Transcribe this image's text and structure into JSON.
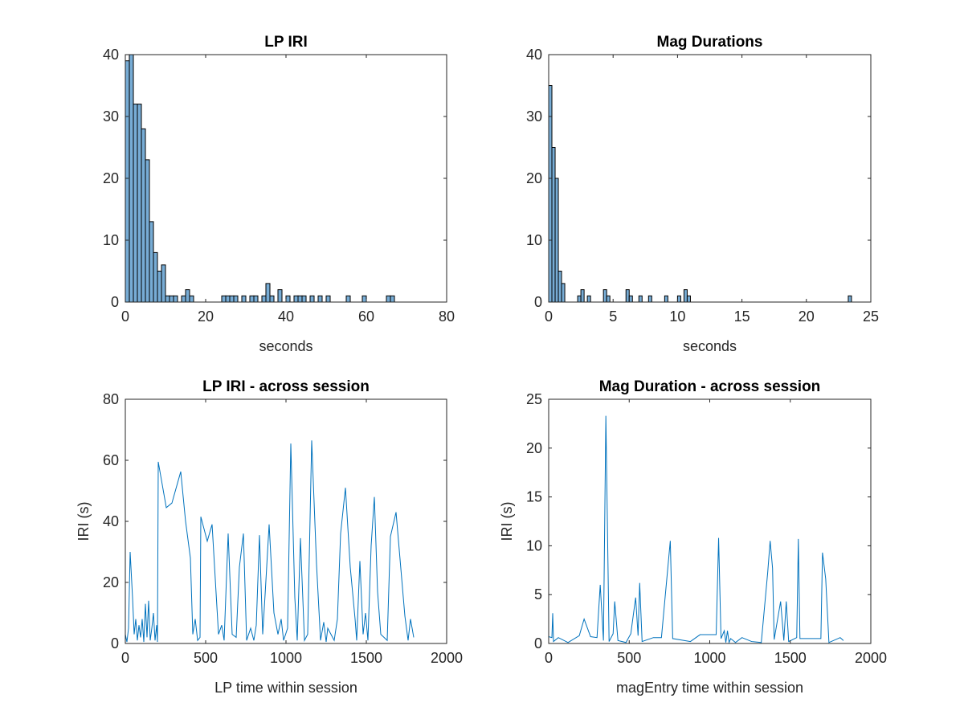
{
  "chart_data": [
    {
      "type": "histogram",
      "title": "LP IRI",
      "xlabel": "seconds",
      "color": "#77acd5",
      "edgecolor": "#000000",
      "bins": [
        0,
        1,
        2,
        3,
        4,
        5,
        6,
        7,
        8,
        9,
        10,
        11,
        12,
        13,
        14,
        15,
        16,
        17,
        18,
        19,
        20,
        21,
        22,
        23,
        24,
        25,
        26,
        27,
        28,
        29,
        30,
        31,
        32,
        33,
        34,
        35,
        36,
        37,
        38,
        39,
        40,
        41,
        42,
        43,
        44,
        45,
        46,
        47,
        48,
        49,
        50,
        51,
        52,
        53,
        54,
        55,
        56,
        57,
        58,
        59,
        60,
        61,
        62,
        63,
        64,
        65,
        66,
        67
      ],
      "values": [
        39,
        40,
        32,
        32,
        28,
        23,
        13,
        8,
        5,
        6,
        1,
        1,
        1,
        0,
        1,
        2,
        1,
        0,
        0,
        0,
        0,
        0,
        0,
        0,
        1,
        1,
        1,
        1,
        0,
        1,
        0,
        1,
        1,
        0,
        1,
        3,
        1,
        0,
        2,
        0,
        1,
        0,
        1,
        1,
        1,
        0,
        1,
        0,
        1,
        0,
        1,
        0,
        0,
        0,
        0,
        1,
        0,
        0,
        0,
        1,
        0,
        0,
        0,
        0,
        0,
        1,
        1
      ],
      "xlim": [
        0,
        80
      ],
      "ylim": [
        0,
        40
      ],
      "xticks": [
        0,
        20,
        40,
        60,
        80
      ],
      "yticks": [
        0,
        10,
        20,
        30,
        40
      ]
    },
    {
      "type": "histogram",
      "title": "Mag Durations",
      "xlabel": "seconds",
      "color": "#77acd5",
      "edgecolor": "#000000",
      "bins": [
        0,
        0.25,
        0.5,
        0.75,
        1,
        1.25,
        1.5,
        1.75,
        2,
        2.25,
        2.5,
        2.75,
        3,
        3.25,
        3.5,
        3.75,
        4,
        4.25,
        4.5,
        4.75,
        5,
        5.25,
        5.5,
        5.75,
        6,
        6.25,
        6.5,
        6.75,
        7,
        7.25,
        7.5,
        7.75,
        8,
        8.25,
        8.5,
        8.75,
        9,
        9.25,
        9.5,
        9.75,
        10,
        10.25,
        10.5,
        10.75,
        11,
        11.25,
        11.5,
        11.75,
        12,
        12.25,
        12.5,
        12.75,
        13,
        13.25,
        13.5,
        13.75,
        14,
        14.25,
        14.5,
        14.75,
        15,
        15.25,
        15.5,
        15.75,
        16,
        16.25,
        16.5,
        16.75,
        17,
        17.25,
        17.5,
        17.75,
        18,
        18.25,
        18.5,
        18.75,
        19,
        19.25,
        19.5,
        19.75,
        20,
        20.25,
        20.5,
        20.75,
        21,
        21.25,
        21.5,
        21.75,
        22,
        22.25,
        22.5,
        22.75,
        23,
        23.25,
        23.5
      ],
      "values": [
        35,
        25,
        20,
        5,
        3,
        0,
        0,
        0,
        0,
        1,
        2,
        0,
        1,
        0,
        0,
        0,
        0,
        2,
        1,
        0,
        0,
        0,
        0,
        0,
        2,
        1,
        0,
        0,
        1,
        0,
        0,
        1,
        0,
        0,
        0,
        0,
        1,
        0,
        0,
        0,
        1,
        0,
        2,
        1,
        0,
        0,
        0,
        0,
        0,
        0,
        0,
        0,
        0,
        0,
        0,
        0,
        0,
        0,
        0,
        0,
        0,
        0,
        0,
        0,
        0,
        0,
        0,
        0,
        0,
        0,
        0,
        0,
        0,
        0,
        0,
        0,
        0,
        0,
        0,
        0,
        0,
        0,
        0,
        0,
        0,
        0,
        0,
        0,
        0,
        0,
        0,
        0,
        0,
        1
      ],
      "xlim": [
        0,
        25
      ],
      "ylim": [
        0,
        40
      ],
      "xticks": [
        0,
        5,
        10,
        15,
        20,
        25
      ],
      "yticks": [
        0,
        10,
        20,
        30,
        40
      ]
    },
    {
      "type": "line",
      "title": "LP IRI - across session",
      "xlabel": "LP time within session",
      "ylabel": "IRI (s)",
      "color": "#0072bd",
      "x": [
        0,
        10,
        20,
        30,
        45,
        55,
        65,
        75,
        85,
        95,
        105,
        115,
        125,
        135,
        145,
        155,
        165,
        175,
        185,
        195,
        200,
        205,
        255,
        290,
        345,
        375,
        405,
        420,
        435,
        450,
        465,
        470,
        510,
        540,
        580,
        600,
        615,
        640,
        665,
        690,
        710,
        735,
        755,
        780,
        800,
        815,
        835,
        855,
        870,
        895,
        925,
        950,
        970,
        985,
        1010,
        1030,
        1055,
        1070,
        1090,
        1115,
        1135,
        1160,
        1190,
        1215,
        1235,
        1250,
        1260,
        1280,
        1300,
        1320,
        1340,
        1370,
        1400,
        1430,
        1440,
        1460,
        1480,
        1495,
        1510,
        1530,
        1550,
        1570,
        1590,
        1610,
        1630,
        1650,
        1685,
        1740,
        1760,
        1775,
        1795
      ],
      "values": [
        3,
        0.5,
        5,
        30,
        15,
        3,
        8,
        1,
        6,
        2,
        8,
        0.5,
        13,
        2,
        14,
        1,
        5,
        10,
        1,
        6,
        0.5,
        59.5,
        44.5,
        46,
        56.3,
        40,
        28,
        3,
        8,
        1,
        2,
        41.5,
        33.5,
        39,
        3,
        6,
        1,
        36,
        3,
        2,
        25,
        36,
        1,
        5,
        1,
        6,
        35.5,
        3,
        16,
        39,
        10,
        3,
        8,
        1,
        5,
        65.5,
        15,
        1,
        34.5,
        1,
        3,
        66.5,
        26,
        1,
        7,
        0.5,
        5,
        3,
        1,
        8,
        36,
        51,
        25,
        8,
        1,
        27,
        3,
        10,
        1,
        32,
        48,
        17,
        3,
        2,
        1,
        35,
        43,
        9,
        1,
        8,
        2
      ],
      "xlim": [
        0,
        2000
      ],
      "ylim": [
        0,
        80
      ],
      "xticks": [
        0,
        500,
        1000,
        1500,
        2000
      ],
      "yticks": [
        0,
        20,
        40,
        60,
        80
      ]
    },
    {
      "type": "line",
      "title": "Mag Duration - across session",
      "xlabel": "magEntry time within session",
      "ylabel": "IRI (s)",
      "color": "#0072bd",
      "x": [
        0,
        20,
        25,
        30,
        60,
        120,
        190,
        220,
        260,
        300,
        320,
        340,
        355,
        375,
        400,
        410,
        430,
        480,
        510,
        540,
        555,
        565,
        580,
        650,
        700,
        755,
        770,
        880,
        940,
        1040,
        1055,
        1070,
        1090,
        1100,
        1110,
        1120,
        1130,
        1160,
        1200,
        1260,
        1320,
        1360,
        1375,
        1390,
        1400,
        1440,
        1460,
        1475,
        1490,
        1540,
        1550,
        1560,
        1690,
        1700,
        1720,
        1740,
        1810,
        1830
      ],
      "values": [
        0.7,
        0.6,
        3.1,
        0.2,
        0.6,
        0.1,
        0.8,
        2.5,
        0.7,
        0.6,
        6,
        0.3,
        23.3,
        0.2,
        1,
        4.3,
        0.3,
        0.1,
        1,
        4.7,
        0.8,
        6.2,
        0.2,
        0.6,
        0.6,
        10.5,
        0.5,
        0.2,
        0.9,
        0.9,
        10.8,
        0.5,
        1.3,
        0.1,
        1.3,
        0.1,
        0.5,
        0.1,
        0.6,
        0.2,
        0.1,
        7.3,
        10.5,
        7.7,
        0.4,
        4.3,
        0.3,
        4.3,
        0.2,
        0.6,
        10.7,
        0.5,
        0.5,
        9.3,
        6.6,
        0.1,
        0.6,
        0.3
      ],
      "xlim": [
        0,
        2000
      ],
      "ylim": [
        0,
        25
      ],
      "xticks": [
        0,
        500,
        1000,
        1500,
        2000
      ],
      "yticks": [
        0,
        5,
        10,
        15,
        20,
        25
      ]
    }
  ]
}
